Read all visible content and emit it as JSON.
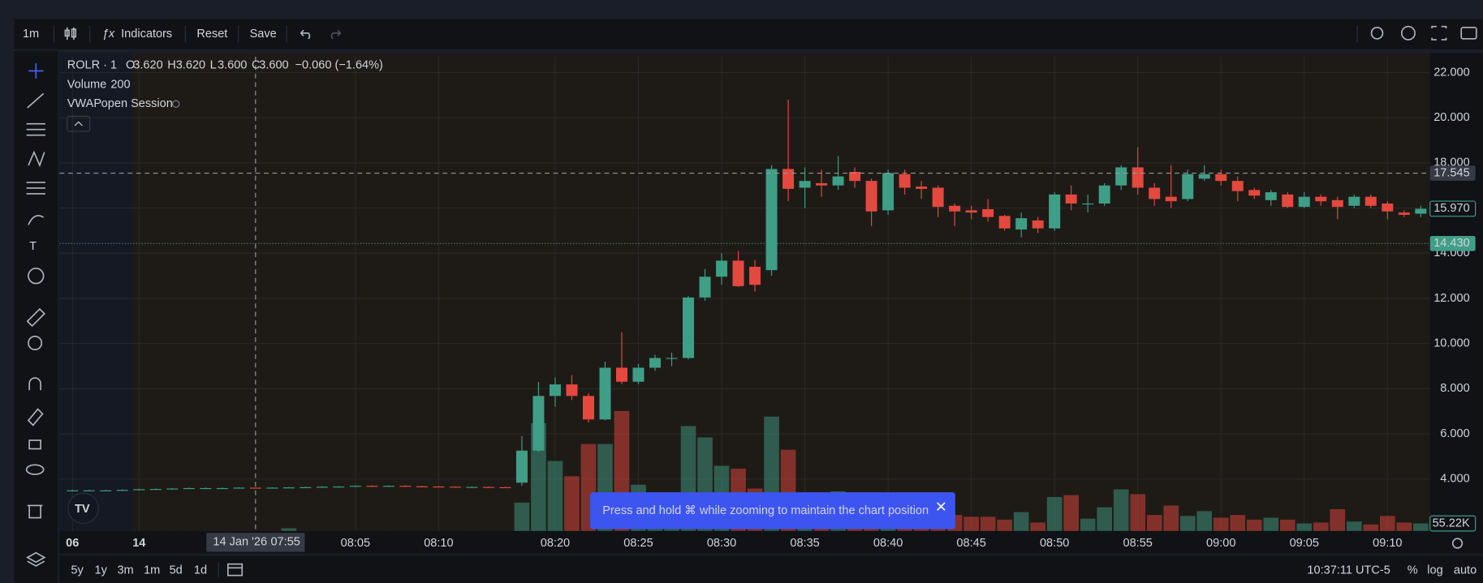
{
  "toolbar": {
    "interval": "1m",
    "indicators": "Indicators",
    "reset": "Reset",
    "save": "Save"
  },
  "legend": {
    "symbol": "ROLR · 1",
    "o": "O",
    "open": {
      "value": 3.62,
      "label": "3.620"
    },
    "h": "H",
    "high": {
      "value": 3.62,
      "label": "3.620"
    },
    "l": "L",
    "low": {
      "value": 3.6,
      "label": "3.600"
    },
    "c": "C",
    "close": {
      "value": 3.6,
      "label": "3.600"
    },
    "change": "−0.060 (−1.64%)",
    "volume_name": "Volume",
    "volume": 200,
    "vwap_name": "VWAP",
    "vwap_args": "open Session"
  },
  "toast": "Press and hold ⌘ while zooming to maintain the chart position",
  "crosshair": {
    "date": "14 Jan '26",
    "time": "07:55",
    "price": 17.545
  },
  "bottom": {
    "ranges": [
      "5y",
      "1y",
      "3m",
      "1m",
      "5d",
      "1d"
    ],
    "clock": "10:37:11 UTC-5",
    "percent": "%",
    "log": "log",
    "auto": "auto"
  },
  "chart_data": {
    "type": "candlestick",
    "categories": [
      "06",
      null,
      null,
      null,
      "14",
      null,
      null,
      null,
      null,
      null,
      null,
      null,
      null,
      null,
      null,
      null,
      null,
      "08:05",
      null,
      null,
      null,
      null,
      "08:10",
      null,
      null,
      null,
      null,
      null,
      null,
      "08:20",
      null,
      null,
      null,
      null,
      "08:25",
      null,
      null,
      null,
      null,
      "08:30",
      null,
      null,
      null,
      null,
      "08:35",
      null,
      null,
      null,
      null,
      "08:40",
      null,
      null,
      null,
      null,
      "08:45",
      null,
      null,
      null,
      null,
      "08:50",
      null,
      null,
      null,
      null,
      "08:55",
      null,
      null,
      null,
      null,
      "09:00",
      null,
      null,
      null,
      null,
      "09:05",
      null,
      null,
      null,
      null,
      "09:10",
      null,
      null
    ],
    "open": [
      3.5,
      3.5,
      3.5,
      3.5,
      3.52,
      3.55,
      3.56,
      3.58,
      3.6,
      3.6,
      3.6,
      3.62,
      3.6,
      3.62,
      3.63,
      3.64,
      3.66,
      3.67,
      3.7,
      3.68,
      3.7,
      3.68,
      3.67,
      3.66,
      3.65,
      3.65,
      3.64,
      3.84,
      5.26,
      7.68,
      8.19,
      7.68,
      6.64,
      8.93,
      8.31,
      8.93,
      9.36,
      9.36,
      12.04,
      12.96,
      13.67,
      13.4,
      13.25,
      17.73,
      16.9,
      17.1,
      17.0,
      17.6,
      17.2,
      15.9,
      17.5,
      16.95,
      16.9,
      16.1,
      15.9,
      15.95,
      15.65,
      15.05,
      15.45,
      15.1,
      16.6,
      16.2,
      16.2,
      17.0,
      17.8,
      16.9,
      16.5,
      16.4,
      17.3,
      17.5,
      17.2,
      16.8,
      16.35,
      16.6,
      16.05,
      16.5,
      16.35,
      16.1,
      16.5,
      16.2,
      15.8,
      15.75
    ],
    "high": [
      3.52,
      3.52,
      3.52,
      3.54,
      3.57,
      3.58,
      3.6,
      3.62,
      3.62,
      3.62,
      3.64,
      3.62,
      3.64,
      3.65,
      3.66,
      3.68,
      3.69,
      3.72,
      3.72,
      3.72,
      3.72,
      3.7,
      3.69,
      3.68,
      3.67,
      3.67,
      3.66,
      5.9,
      8.3,
      8.5,
      8.6,
      7.8,
      9.2,
      10.5,
      9.1,
      9.5,
      9.6,
      12.1,
      13.3,
      14.0,
      14.1,
      13.7,
      17.9,
      20.8,
      17.8,
      17.7,
      18.3,
      17.8,
      17.3,
      17.7,
      17.7,
      17.2,
      17.0,
      16.2,
      16.1,
      16.4,
      15.7,
      15.8,
      15.6,
      16.7,
      17.0,
      16.6,
      17.1,
      17.9,
      18.7,
      17.1,
      17.9,
      17.7,
      17.9,
      17.7,
      17.4,
      16.9,
      16.8,
      16.7,
      16.7,
      16.6,
      16.5,
      16.6,
      16.6,
      16.3,
      15.9,
      16.1
    ],
    "low": [
      3.48,
      3.48,
      3.48,
      3.48,
      3.5,
      3.53,
      3.54,
      3.56,
      3.58,
      3.58,
      3.58,
      3.6,
      3.58,
      3.6,
      3.61,
      3.62,
      3.64,
      3.65,
      3.66,
      3.66,
      3.66,
      3.65,
      3.64,
      3.63,
      3.63,
      3.62,
      3.6,
      3.7,
      5.2,
      7.2,
      7.5,
      6.5,
      6.6,
      8.2,
      8.2,
      8.8,
      9.0,
      9.3,
      11.9,
      12.6,
      12.5,
      12.3,
      13.0,
      16.3,
      16.0,
      16.5,
      16.8,
      16.9,
      15.2,
      15.7,
      16.6,
      16.4,
      15.6,
      15.2,
      15.5,
      15.4,
      15.0,
      14.7,
      14.9,
      15.0,
      15.9,
      15.8,
      16.1,
      16.8,
      16.6,
      16.1,
      16.0,
      16.3,
      17.2,
      17.0,
      16.3,
      16.4,
      16.1,
      16.0,
      16.0,
      16.1,
      15.5,
      16.0,
      16.0,
      15.5,
      15.6,
      15.6
    ],
    "close": [
      3.5,
      3.5,
      3.5,
      3.52,
      3.55,
      3.56,
      3.58,
      3.6,
      3.6,
      3.6,
      3.62,
      3.6,
      3.62,
      3.63,
      3.64,
      3.66,
      3.67,
      3.7,
      3.68,
      3.7,
      3.68,
      3.67,
      3.66,
      3.65,
      3.65,
      3.64,
      3.62,
      5.26,
      7.68,
      8.19,
      7.68,
      6.64,
      8.93,
      8.31,
      8.93,
      9.36,
      9.36,
      12.04,
      12.96,
      13.67,
      12.54,
      12.6,
      17.73,
      16.85,
      17.2,
      17.0,
      17.4,
      17.2,
      15.85,
      17.55,
      16.9,
      16.85,
      16.05,
      15.85,
      15.8,
      15.6,
      15.1,
      15.55,
      15.1,
      16.6,
      16.2,
      16.2,
      17.0,
      17.8,
      16.9,
      16.4,
      16.3,
      17.5,
      17.5,
      17.2,
      16.75,
      16.55,
      16.7,
      16.05,
      16.5,
      16.3,
      16.05,
      16.5,
      16.1,
      15.85,
      15.7,
      15.97
    ],
    "volume": [
      500,
      500,
      500,
      500,
      500,
      500,
      500,
      500,
      500,
      500,
      500,
      200,
      500,
      20000,
      500,
      500,
      500,
      500,
      500,
      500,
      500,
      500,
      500,
      500,
      500,
      500,
      500,
      207000,
      787000,
      511000,
      400000,
      635000,
      635000,
      876000,
      338000,
      180000,
      120000,
      766000,
      683000,
      476000,
      455000,
      310000,
      835000,
      593000,
      250000,
      180000,
      290000,
      150000,
      220000,
      200000,
      140000,
      120000,
      110000,
      117000,
      104000,
      104000,
      83000,
      138000,
      62000,
      248000,
      262000,
      90000,
      173000,
      304000,
      269000,
      117000,
      186000,
      110000,
      145000,
      97000,
      117000,
      83000,
      97000,
      83000,
      55000,
      62000,
      159000,
      69000,
      48000,
      110000,
      62000,
      55220
    ],
    "last_volume_label": "55.22K",
    "last_price": {
      "value": 15.97,
      "label": "15.970"
    },
    "vwap": {
      "value": 14.43,
      "label": "14.430"
    },
    "ylim": [
      1.7,
      22.7
    ],
    "yticks": [
      {
        "value": 4,
        "label": "4.000"
      },
      {
        "value": 6,
        "label": "6.000"
      },
      {
        "value": 8,
        "label": "8.000"
      },
      {
        "value": 10,
        "label": "10.000"
      },
      {
        "value": 12,
        "label": "12.000"
      },
      {
        "value": 14,
        "label": "14.000"
      },
      {
        "value": 16,
        "label": "16.000"
      },
      {
        "value": 18,
        "label": "18.000"
      },
      {
        "value": 20,
        "label": "20.000"
      },
      {
        "value": 22,
        "label": "22.000"
      }
    ],
    "volume_ylim": [
      0,
      1000000
    ],
    "up_color": "#3f9e86",
    "down_color": "#e5483e",
    "grid": true
  }
}
